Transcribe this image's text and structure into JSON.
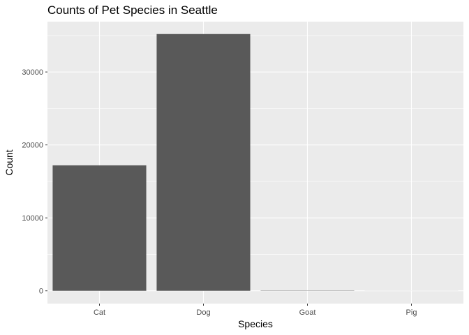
{
  "chart_data": {
    "type": "bar",
    "title": "Counts of Pet Species in Seattle",
    "xlabel": "Species",
    "ylabel": "Count",
    "categories": [
      "Cat",
      "Dog",
      "Goat",
      "Pig"
    ],
    "values": [
      17200,
      35200,
      38,
      6
    ],
    "ylim": [
      -1750,
      36900
    ],
    "yticks": [
      0,
      10000,
      20000,
      30000
    ],
    "ytick_labels": [
      "0",
      "10000",
      "20000",
      "30000"
    ],
    "grid": true,
    "colors": {
      "bar": "#595959",
      "panel": "#ebebeb",
      "grid": "#ffffff"
    }
  }
}
